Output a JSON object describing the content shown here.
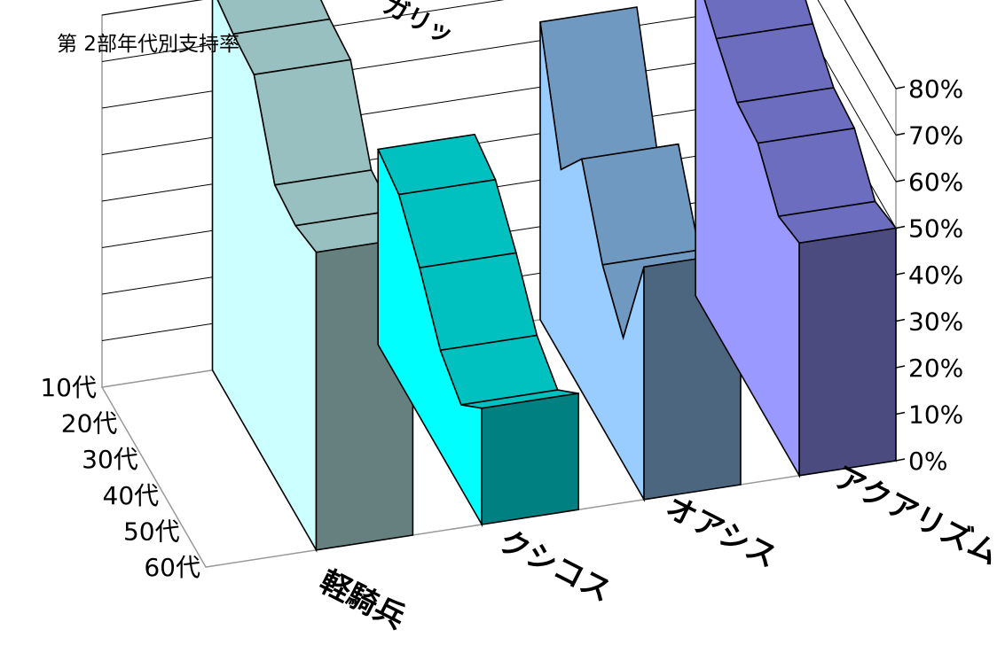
{
  "page": {
    "title": "第 2部年代別支持率"
  },
  "chart_data": {
    "type": "area",
    "title": "第 2部年代別支持率",
    "top_label_fragment": "ガリッ",
    "x_axis_label": "",
    "y_axis_label": "",
    "categories": [
      "10代",
      "20代",
      "30代",
      "40代",
      "50代",
      "60代"
    ],
    "series": [
      {
        "name": "軽騎兵",
        "values": [
          0.7,
          0.63,
          0.57,
          0.56,
          0.48,
          0.5
        ],
        "face": "#9999ff",
        "top": "#6d6dc0",
        "end": "#4b4b80"
      },
      {
        "name": "クシコス",
        "values": [
          0.64,
          0.4,
          0.5,
          0.35,
          0.27,
          0.5
        ],
        "face": "#99ccff",
        "top": "#6f99c0",
        "end": "#4d6680"
      },
      {
        "name": "オアシス",
        "values": [
          0.42,
          0.4,
          0.32,
          0.22,
          0.18,
          0.25
        ],
        "face": "#00ffff",
        "top": "#00c0c0",
        "end": "#008080"
      },
      {
        "name": "アクアリズム",
        "values": [
          0.82,
          0.8,
          0.79,
          0.63,
          0.62,
          0.64
        ],
        "face": "#ccffff",
        "top": "#99c0c0",
        "end": "#668080"
      }
    ],
    "y_axis": {
      "min": 0,
      "max": 0.8,
      "step": 0.1,
      "tick_labels": [
        "0%",
        "10%",
        "20%",
        "30%",
        "40%",
        "50%",
        "60%",
        "70%",
        "80%"
      ]
    },
    "depth_axis_labels": [
      "軽騎兵",
      "クシコス",
      "オアシス",
      "アクアリズム"
    ],
    "grid": true,
    "legend": "none"
  }
}
